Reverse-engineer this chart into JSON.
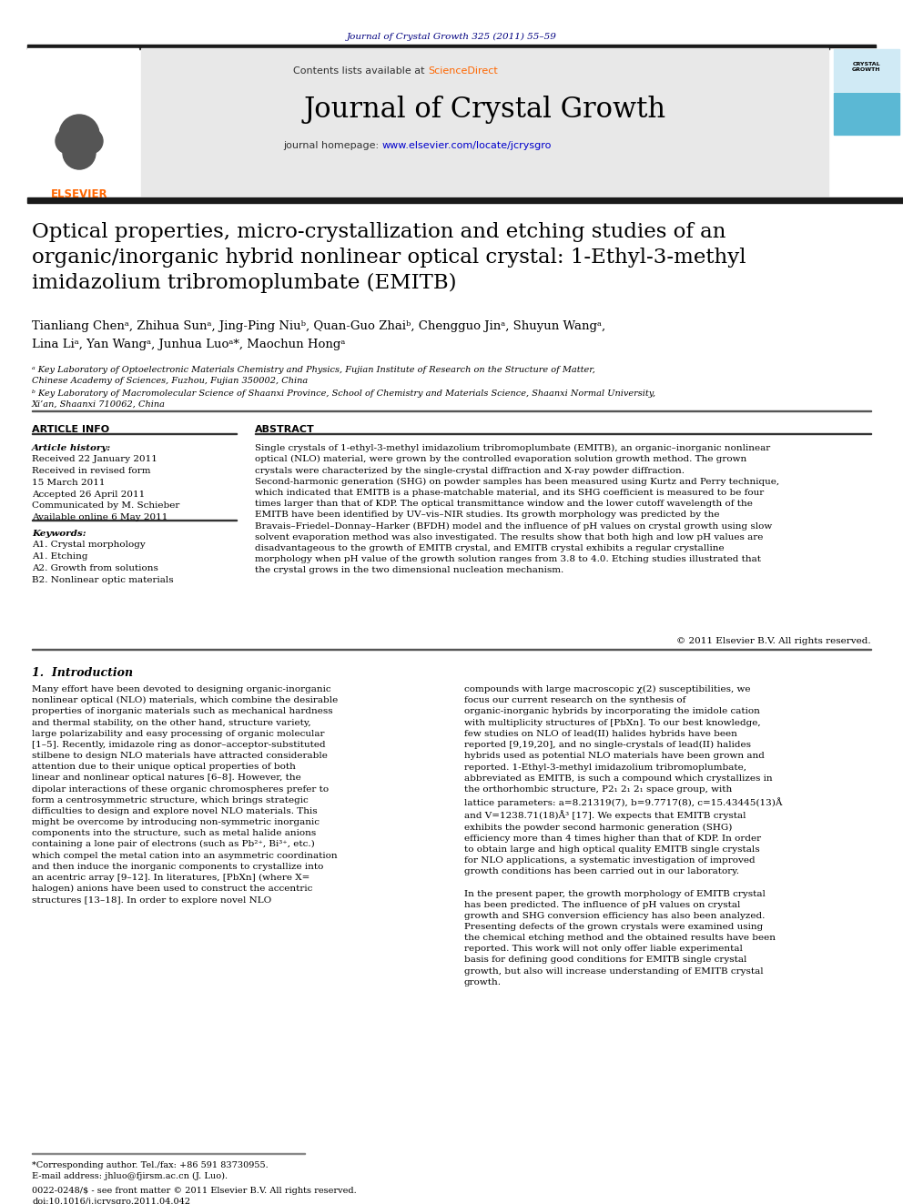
{
  "journal_ref": "Journal of Crystal Growth 325 (2011) 55–59",
  "sciencedirect_color": "#ff6600",
  "header_bg": "#e8e8e8",
  "title": "Optical properties, micro-crystallization and etching studies of an\norganic/inorganic hybrid nonlinear optical crystal: 1-Ethyl-3-methyl\nimidazolium tribromoplumbate (EMITB)",
  "authors_line1": "Tianliang Chenᵃ, Zhihua Sunᵃ, Jing-Ping Niuᵇ, Quan-Guo Zhaiᵇ, Chengguo Jinᵃ, Shuyun Wangᵃ,",
  "authors_line2": "Lina Liᵃ, Yan Wangᵃ, Junhua Luoᵃ*, Maochun Hongᵃ",
  "affil_a": "ᵃ Key Laboratory of Optoelectronic Materials Chemistry and Physics, Fujian Institute of Research on the Structure of Matter,\nChinese Academy of Sciences, Fuzhou, Fujian 350002, China",
  "affil_b": "ᵇ Key Laboratory of Macromolecular Science of Shaanxi Province, School of Chemistry and Materials Science, Shaanxi Normal University,\nXi’an, Shaanxi 710062, China",
  "article_info_header": "ARTICLE INFO",
  "abstract_header": "ABSTRACT",
  "article_history_title": "Article history:",
  "article_history": "Received 22 January 2011\nReceived in revised form\n15 March 2011\nAccepted 26 April 2011\nCommunicated by M. Schieber\nAvailable online 6 May 2011",
  "keywords_title": "Keywords:",
  "keywords": "A1. Crystal morphology\nA1. Etching\nA2. Growth from solutions\nB2. Nonlinear optic materials",
  "abstract_text": "Single crystals of 1-ethyl-3-methyl imidazolium tribromoplumbate (EMITB), an organic–inorganic nonlinear optical (NLO) material, were grown by the controlled evaporation solution growth method. The grown crystals were characterized by the single-crystal diffraction and X-ray powder diffraction. Second-harmonic generation (SHG) on powder samples has been measured using Kurtz and Perry technique, which indicated that EMITB is a phase-matchable material, and its SHG coefficient is measured to be four times larger than that of KDP. The optical transmittance window and the lower cutoff wavelength of the EMITB have been identified by UV–vis–NIR studies. Its growth morphology was predicted by the Bravais–Friedel–Donnay–Harker (BFDH) model and the influence of pH values on crystal growth using slow solvent evaporation method was also investigated. The results show that both high and low pH values are disadvantageous to the growth of EMITB crystal, and EMITB crystal exhibits a regular crystalline morphology when pH value of the growth solution ranges from 3.8 to 4.0. Etching studies illustrated that the crystal grows in the two dimensional nucleation mechanism.",
  "copyright": "© 2011 Elsevier B.V. All rights reserved.",
  "section1_header": "1.  Introduction",
  "intro_left": "    Many effort have been devoted to designing organic-inorganic nonlinear optical (NLO) materials, which combine the desirable properties of inorganic materials such as mechanical hardness and thermal stability, on the other hand, structure variety, large polarizability and easy processing of organic molecular [1–5]. Recently, imidazole ring as donor–acceptor-substituted stilbene to design NLO materials have attracted considerable attention due to their unique optical properties of both linear and nonlinear optical natures [6–8]. However, the dipolar interactions of these organic chromospheres prefer to form a centrosymmetric structure, which brings strategic difficulties to design and explore novel NLO materials. This might be overcome by introducing non-symmetric inorganic components into the structure, such as metal halide anions containing a lone pair of electrons (such as Pb²⁺, Bi³⁺, etc.) which compel the metal cation into an asymmetric coordination and then induce the inorganic components to crystallize into an acentric array [9–12]. In literatures, [PbXn] (where X= halogen) anions have been used to construct the accentric structures [13–18]. In order to explore novel NLO",
  "intro_right": "compounds with large macroscopic χ(2) susceptibilities, we focus our current research on the synthesis of organic-inorganic hybrids by incorporating the imidole cation with multiplicity structures of [PbXn]. To our best knowledge, few studies on NLO of lead(II) halides hybrids have been reported [9,19,20], and no single-crystals of lead(II) halides hybrids used as potential NLO materials have been grown and reported. 1-Ethyl-3-methyl imidazolium tribromoplumbate, abbreviated as EMITB, is such a compound which crystallizes in the orthorhombic structure, P2₁ 2₁ 2₁ space group, with lattice parameters:  a=8.21319(7),  b=9.7717(8),  c=15.43445(13)Å and V=1238.71(18)Å³ [17]. We expects that EMITB crystal exhibits the powder second harmonic generation (SHG) efficiency more than 4 times higher than that of KDP. In order to obtain large and high optical quality EMITB single crystals for NLO applications, a systematic investigation of improved growth conditions has been carried out in our laboratory.\n    In the present paper, the growth morphology of EMITB crystal has been predicted. The influence of pH values on crystal growth and SHG conversion efficiency has also been analyzed. Presenting defects of the grown crystals were examined using the chemical etching method and the obtained results have been reported. This work will not only offer liable experimental basis for defining good conditions for EMITB single crystal growth, but also will increase understanding of EMITB crystal growth.",
  "footer_left": "*Corresponding author. Tel./fax: +86 591 83730955.\nE-mail address: jhluo@fjirsm.ac.cn (J. Luo).",
  "footer_issn": "0022-0248/$ - see front matter © 2011 Elsevier B.V. All rights reserved.\ndoi:10.1016/j.jcrysgro.2011.04.042",
  "journal_ref_color": "#000080",
  "bg_color": "#ffffff",
  "text_color": "#000000",
  "link_color": "#0000cc",
  "header_bar_color": "#1a1a1a"
}
